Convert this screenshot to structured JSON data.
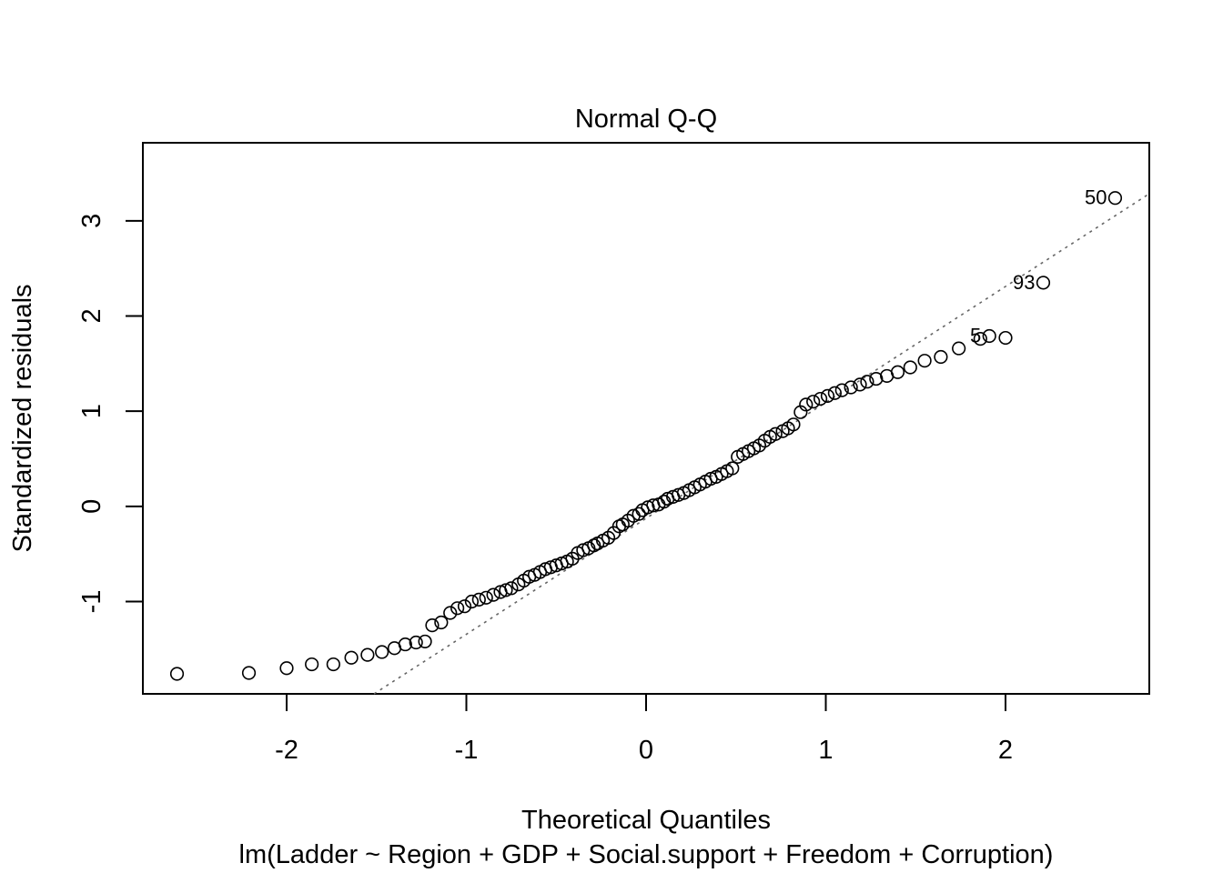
{
  "chart_data": {
    "type": "scatter",
    "title": "Normal Q-Q",
    "xlabel": "Theoretical Quantiles",
    "subtitle": "lm(Ladder ~ Region + GDP + Social.support + Freedom + Corruption)",
    "ylabel": "Standardized residuals",
    "xlim": [
      -2.8,
      2.8
    ],
    "ylim": [
      -1.97,
      3.82
    ],
    "x_ticks": [
      -2,
      -1,
      0,
      1,
      2
    ],
    "y_ticks": [
      -1,
      0,
      1,
      2,
      3
    ],
    "grid": false,
    "reference_line": {
      "style": "dotted",
      "color": "#666666",
      "slope": 1.218,
      "intercept": -0.126
    },
    "points": [
      [
        -2.61,
        -1.76
      ],
      [
        -2.21,
        -1.75
      ],
      [
        -2.0,
        -1.7
      ],
      [
        -1.86,
        -1.66
      ],
      [
        -1.74,
        -1.66
      ],
      [
        -1.64,
        -1.59
      ],
      [
        -1.55,
        -1.56
      ],
      [
        -1.47,
        -1.53
      ],
      [
        -1.4,
        -1.49
      ],
      [
        -1.34,
        -1.45
      ],
      [
        -1.28,
        -1.43
      ],
      [
        -1.23,
        -1.42
      ],
      [
        -1.19,
        -1.25
      ],
      [
        -1.14,
        -1.22
      ],
      [
        -1.09,
        -1.12
      ],
      [
        -1.05,
        -1.07
      ],
      [
        -1.01,
        -1.05
      ],
      [
        -0.97,
        -1.0
      ],
      [
        -0.93,
        -0.98
      ],
      [
        -0.89,
        -0.96
      ],
      [
        -0.85,
        -0.93
      ],
      [
        -0.81,
        -0.9
      ],
      [
        -0.78,
        -0.88
      ],
      [
        -0.75,
        -0.86
      ],
      [
        -0.71,
        -0.82
      ],
      [
        -0.68,
        -0.78
      ],
      [
        -0.65,
        -0.74
      ],
      [
        -0.62,
        -0.72
      ],
      [
        -0.59,
        -0.69
      ],
      [
        -0.56,
        -0.66
      ],
      [
        -0.53,
        -0.64
      ],
      [
        -0.5,
        -0.62
      ],
      [
        -0.47,
        -0.6
      ],
      [
        -0.44,
        -0.58
      ],
      [
        -0.41,
        -0.55
      ],
      [
        -0.38,
        -0.49
      ],
      [
        -0.35,
        -0.46
      ],
      [
        -0.32,
        -0.44
      ],
      [
        -0.29,
        -0.41
      ],
      [
        -0.27,
        -0.39
      ],
      [
        -0.24,
        -0.36
      ],
      [
        -0.21,
        -0.33
      ],
      [
        -0.18,
        -0.28
      ],
      [
        -0.15,
        -0.21
      ],
      [
        -0.13,
        -0.19
      ],
      [
        -0.1,
        -0.15
      ],
      [
        -0.07,
        -0.1
      ],
      [
        -0.04,
        -0.08
      ],
      [
        -0.02,
        -0.04
      ],
      [
        0.01,
        -0.01
      ],
      [
        0.04,
        0.01
      ],
      [
        0.07,
        0.02
      ],
      [
        0.1,
        0.05
      ],
      [
        0.12,
        0.08
      ],
      [
        0.15,
        0.1
      ],
      [
        0.18,
        0.12
      ],
      [
        0.21,
        0.14
      ],
      [
        0.24,
        0.17
      ],
      [
        0.27,
        0.2
      ],
      [
        0.3,
        0.23
      ],
      [
        0.33,
        0.26
      ],
      [
        0.36,
        0.29
      ],
      [
        0.39,
        0.31
      ],
      [
        0.42,
        0.34
      ],
      [
        0.45,
        0.37
      ],
      [
        0.48,
        0.4
      ],
      [
        0.51,
        0.52
      ],
      [
        0.54,
        0.55
      ],
      [
        0.57,
        0.58
      ],
      [
        0.6,
        0.61
      ],
      [
        0.63,
        0.64
      ],
      [
        0.66,
        0.69
      ],
      [
        0.69,
        0.73
      ],
      [
        0.72,
        0.76
      ],
      [
        0.76,
        0.79
      ],
      [
        0.79,
        0.82
      ],
      [
        0.82,
        0.86
      ],
      [
        0.86,
        0.99
      ],
      [
        0.89,
        1.07
      ],
      [
        0.93,
        1.1
      ],
      [
        0.97,
        1.13
      ],
      [
        1.01,
        1.16
      ],
      [
        1.05,
        1.19
      ],
      [
        1.09,
        1.22
      ],
      [
        1.14,
        1.25
      ],
      [
        1.19,
        1.28
      ],
      [
        1.23,
        1.31
      ],
      [
        1.28,
        1.34
      ],
      [
        1.34,
        1.37
      ],
      [
        1.4,
        1.41
      ],
      [
        1.47,
        1.46
      ],
      [
        1.55,
        1.53
      ],
      [
        1.64,
        1.57
      ],
      [
        1.74,
        1.66
      ],
      [
        1.86,
        1.76
      ],
      [
        1.91,
        1.79
      ],
      [
        2.0,
        1.77
      ],
      [
        2.21,
        2.35
      ],
      [
        2.61,
        3.24
      ]
    ],
    "annotations": [
      {
        "text": "50",
        "x": 2.61,
        "y": 3.24
      },
      {
        "text": "93",
        "x": 2.21,
        "y": 2.35
      },
      {
        "text": "5",
        "x": 1.91,
        "y": 1.79
      }
    ]
  }
}
